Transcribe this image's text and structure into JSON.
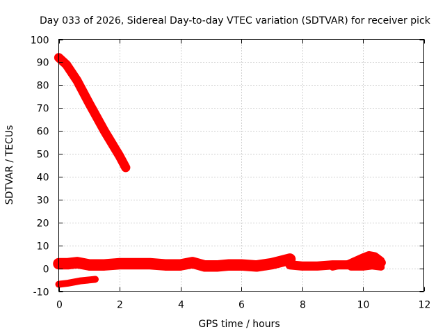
{
  "chart_data": {
    "type": "line",
    "title": "Day 033 of 2026, Sidereal Day-to-day VTEC variation (SDTVAR) for receiver pick",
    "xlabel": "GPS time / hours",
    "ylabel": "SDTVAR / TECUs",
    "xlim": [
      0,
      12
    ],
    "ylim": [
      -10,
      100
    ],
    "x_ticks": [
      0,
      2,
      4,
      6,
      8,
      10,
      12
    ],
    "x_tick_labels": [
      "0",
      "2",
      "4",
      "6",
      "8",
      "10",
      "12"
    ],
    "y_ticks": [
      -10,
      0,
      10,
      20,
      30,
      40,
      50,
      60,
      70,
      80,
      90,
      100
    ],
    "y_tick_labels": [
      "-10",
      "0",
      "10",
      "20",
      "30",
      "40",
      "50",
      "60",
      "70",
      "80",
      "90",
      "100"
    ],
    "grid": true,
    "series": [
      {
        "color": "#ff0000",
        "band": 4,
        "points": [
          [
            0.0,
            92.0
          ],
          [
            0.25,
            89.0
          ],
          [
            0.6,
            82.0
          ],
          [
            1.0,
            72.0
          ],
          [
            1.5,
            60.0
          ],
          [
            2.0,
            49.0
          ],
          [
            2.2,
            44.0
          ]
        ]
      },
      {
        "color": "#ff0000",
        "band": 5,
        "points": [
          [
            0.0,
            2.0
          ],
          [
            0.3,
            2.0
          ],
          [
            0.6,
            2.5
          ],
          [
            1.0,
            1.5
          ],
          [
            1.5,
            1.5
          ],
          [
            2.0,
            2.0
          ],
          [
            2.5,
            2.0
          ],
          [
            3.0,
            2.0
          ],
          [
            3.5,
            1.5
          ],
          [
            4.0,
            1.5
          ],
          [
            4.4,
            2.5
          ],
          [
            4.8,
            1.0
          ],
          [
            5.2,
            1.0
          ],
          [
            5.6,
            1.5
          ],
          [
            6.0,
            1.5
          ],
          [
            6.5,
            1.0
          ],
          [
            7.0,
            2.0
          ],
          [
            7.3,
            3.0
          ],
          [
            7.6,
            4.0
          ]
        ]
      },
      {
        "color": "#ff0000",
        "band": 4,
        "points": [
          [
            7.6,
            1.5
          ],
          [
            8.0,
            1.0
          ],
          [
            8.5,
            1.0
          ],
          [
            9.0,
            1.5
          ],
          [
            9.5,
            1.5
          ],
          [
            9.8,
            1.5
          ],
          [
            10.0,
            2.5
          ],
          [
            10.3,
            3.5
          ],
          [
            10.6,
            2.5
          ]
        ]
      },
      {
        "color": "#ff0000",
        "band": 3,
        "points": [
          [
            9.0,
            0.5
          ],
          [
            9.5,
            2.0
          ],
          [
            10.0,
            5.0
          ],
          [
            10.2,
            6.0
          ],
          [
            10.4,
            5.5
          ],
          [
            10.6,
            3.5
          ]
        ]
      },
      {
        "color": "#ff0000",
        "band": 3,
        "points": [
          [
            9.6,
            0.5
          ],
          [
            10.0,
            0.5
          ],
          [
            10.3,
            1.0
          ],
          [
            10.6,
            0.5
          ]
        ]
      },
      {
        "color": "#ff0000",
        "band": 3,
        "points": [
          [
            0.0,
            -7.0
          ],
          [
            0.3,
            -6.5
          ],
          [
            0.7,
            -5.5
          ],
          [
            1.2,
            -4.8
          ]
        ]
      }
    ]
  }
}
